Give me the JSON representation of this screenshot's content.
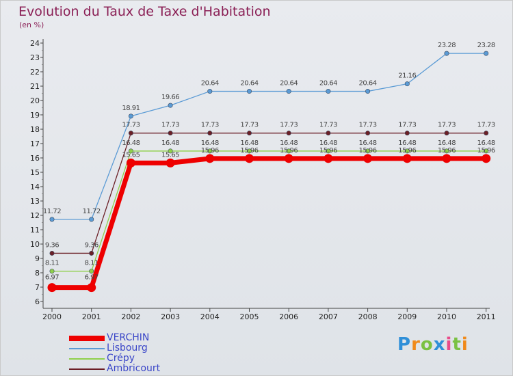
{
  "title": "Evolution du Taux de Taxe d'Habitation",
  "subtitle": "(en %)",
  "brand": "Proxiti",
  "chart_data": {
    "type": "line",
    "title": "Evolution du Taux de Taxe d'Habitation",
    "ylabel": "(en %)",
    "ylim": [
      6,
      24
    ],
    "yticks": [
      6,
      7,
      8,
      9,
      10,
      11,
      12,
      13,
      14,
      15,
      16,
      17,
      18,
      19,
      20,
      21,
      22,
      23,
      24
    ],
    "grid": false,
    "legend": "bottom-left",
    "categories": [
      "2000",
      "2001",
      "2002",
      "2003",
      "2004",
      "2005",
      "2006",
      "2007",
      "2008",
      "2009",
      "2010",
      "2011"
    ],
    "series": [
      {
        "name": "VERCHIN",
        "color": "#ee0000",
        "values": [
          6.97,
          6.97,
          15.65,
          15.65,
          15.96,
          15.96,
          15.96,
          15.96,
          15.96,
          15.96,
          15.96,
          15.96
        ],
        "labels": [
          "6.97",
          "6.97",
          "15.65",
          "15.65",
          "15.96",
          "15.96",
          "15.96",
          "15.96",
          "15.96",
          "15.96",
          "15.96",
          "15.96"
        ]
      },
      {
        "name": "Lisbourg",
        "color": "#5b9bd5",
        "values": [
          11.72,
          11.72,
          18.91,
          19.66,
          20.64,
          20.64,
          20.64,
          20.64,
          20.64,
          21.16,
          23.28,
          23.28
        ],
        "labels": [
          "11.72",
          "11.72",
          "18.91",
          "19.66",
          "20.64",
          "20.64",
          "20.64",
          "20.64",
          "20.64",
          "21.16",
          "23.28",
          "23.28"
        ]
      },
      {
        "name": "Crépy",
        "color": "#8fd04a",
        "values": [
          8.11,
          8.11,
          16.48,
          16.48,
          16.48,
          16.48,
          16.48,
          16.48,
          16.48,
          16.48,
          16.48,
          16.48
        ],
        "labels": [
          "8.11",
          "8.11",
          "16.48",
          "16.48",
          "16.48",
          "16.48",
          "16.48",
          "16.48",
          "16.48",
          "16.48",
          "16.48",
          "16.48"
        ]
      },
      {
        "name": "Ambricourt",
        "color": "#6b1f26",
        "values": [
          9.36,
          9.36,
          17.73,
          17.73,
          17.73,
          17.73,
          17.73,
          17.73,
          17.73,
          17.73,
          17.73,
          17.73
        ],
        "labels": [
          "9.36",
          "9.36",
          "17.73",
          "17.73",
          "17.73",
          "17.73",
          "17.73",
          "17.73",
          "17.73",
          "17.73",
          "17.73",
          "17.73"
        ]
      }
    ]
  }
}
